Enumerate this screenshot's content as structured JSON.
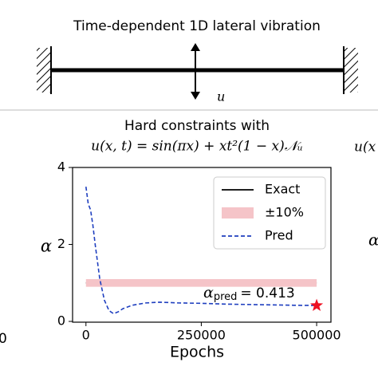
{
  "diagram": {
    "title": "Time-dependent 1D lateral vibration",
    "arrow_label": "u"
  },
  "edge_fragments": {
    "left": "0",
    "right_title": "u(x",
    "right_axis": "α"
  },
  "chart_data": {
    "type": "line",
    "title": "Hard constraints with",
    "subtitle": "u(x, t) = sin(πx) + xt²(1 − x)𝒩ᵤ",
    "x_label": "Epochs",
    "y_label": "α",
    "xlim": [
      -29000,
      531000
    ],
    "ylim": [
      -0.02,
      4.0
    ],
    "xticks": [
      0,
      250000,
      500000
    ],
    "yticks": [
      0,
      2,
      4
    ],
    "legend": "upper right",
    "series": [
      {
        "name": "Exact",
        "color": "#000000",
        "x": [
          0,
          500000
        ],
        "values": [
          1,
          1
        ]
      },
      {
        "name": "±10%",
        "color": "#f5c4c8",
        "x": [
          0,
          500000
        ],
        "lower": [
          0.9,
          0.9
        ],
        "upper": [
          1.1,
          1.1
        ]
      },
      {
        "name": "Pred",
        "color": "#1f3fbf",
        "dashed": true,
        "x": [
          0,
          5000,
          10000,
          15000,
          20000,
          30000,
          40000,
          50000,
          60000,
          70000,
          80000,
          100000,
          130000,
          160000,
          200000,
          250000,
          300000,
          350000,
          400000,
          450000,
          500000
        ],
        "values": [
          3.5,
          3.05,
          2.9,
          2.5,
          2.0,
          1.1,
          0.55,
          0.28,
          0.2,
          0.25,
          0.33,
          0.42,
          0.48,
          0.5,
          0.48,
          0.47,
          0.45,
          0.44,
          0.43,
          0.42,
          0.413
        ]
      }
    ],
    "marker": {
      "x": 500000,
      "value": 0.413,
      "color": "#ee1122"
    },
    "annotation": {
      "symbol": "α",
      "subscript": "pred",
      "text": "= 0.413"
    }
  }
}
